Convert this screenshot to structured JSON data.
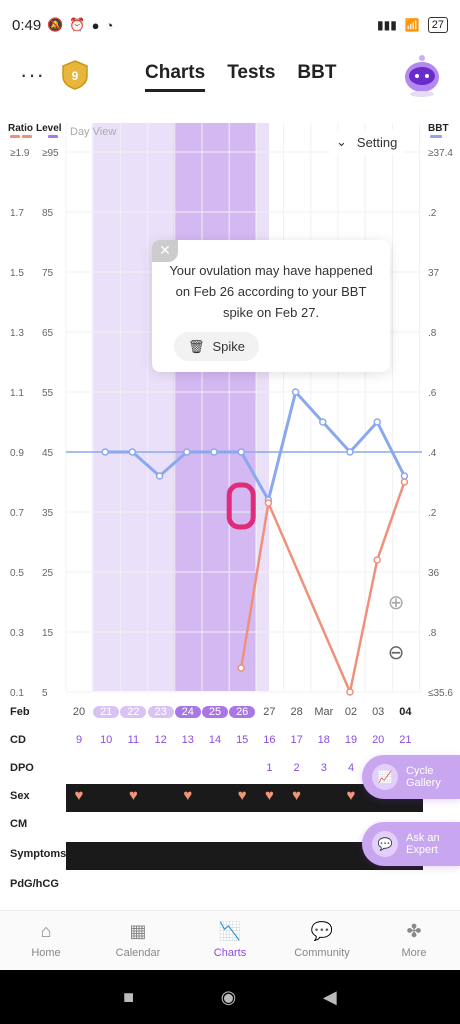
{
  "status": {
    "time": "0:49",
    "battery": "27"
  },
  "header": {
    "tabs": [
      "Charts",
      "Tests",
      "BBT"
    ],
    "active_tab": "Charts",
    "badge_number": "9"
  },
  "chart": {
    "view_label": "Day View",
    "setting_label": "Setting",
    "left_axis_titles": [
      "Ratio",
      "Level"
    ],
    "right_axis_title": "BBT",
    "ratio_ticks": [
      "≥1.9",
      "1.7",
      "1.5",
      "1.3",
      "1.1",
      "0.9",
      "0.7",
      "0.5",
      "0.3",
      "0.1"
    ],
    "level_ticks": [
      "≥95",
      "85",
      "75",
      "65",
      "55",
      "45",
      "35",
      "25",
      "15",
      "5"
    ],
    "bbt_ticks": [
      "≥37.4",
      ".2",
      "37",
      ".8",
      ".6",
      ".4",
      ".2",
      "36",
      ".8",
      "≤35.6"
    ],
    "popup": {
      "message": "Your ovulation may have happened on Feb 26 according to your BBT spike on Feb 27.",
      "spike_label": "Spike",
      "close_symbol": "✕"
    }
  },
  "chart_data": {
    "type": "line",
    "x": [
      "20",
      "21",
      "22",
      "23",
      "24",
      "25",
      "26",
      "27",
      "28",
      "Mar",
      "02",
      "03",
      "04"
    ],
    "series": [
      {
        "name": "BBT",
        "values": [
          null,
          45,
          45,
          41,
          45,
          45,
          45,
          37,
          55,
          50,
          45,
          50,
          41
        ],
        "color": "#8aa8ef"
      },
      {
        "name": "Ratio",
        "values": [
          null,
          null,
          null,
          null,
          null,
          null,
          0.18,
          0.73,
          null,
          null,
          0.1,
          0.54,
          0.8
        ],
        "color": "#f0907a"
      }
    ],
    "baseline_value": 45,
    "ylim_level": [
      5,
      95
    ]
  },
  "rows": {
    "feb_label": "Feb",
    "dates": [
      "20",
      "21",
      "22",
      "23",
      "24",
      "25",
      "26",
      "27",
      "28",
      "Mar",
      "02",
      "03",
      "04"
    ],
    "cd_label": "CD",
    "cd": [
      "9",
      "10",
      "11",
      "12",
      "13",
      "14",
      "15",
      "16",
      "17",
      "18",
      "19",
      "20",
      "21"
    ],
    "dpo_label": "DPO",
    "dpo": [
      "1",
      "2",
      "3",
      "4"
    ],
    "sex_label": "Sex",
    "cm_label": "CM",
    "symptoms_label": "Symptoms",
    "pdg_label": "PdG/hCG"
  },
  "floating": {
    "cycle_gallery": [
      "Cycle",
      "Gallery"
    ],
    "ask_expert": [
      "Ask an",
      "Expert"
    ]
  },
  "bottom_nav": {
    "items": [
      "Home",
      "Calendar",
      "Charts",
      "Community",
      "More"
    ],
    "active": "Charts"
  },
  "colors": {
    "accent": "#8a4ee0",
    "light_purple_band": "#ebe0f9",
    "mid_purple_band": "#d4b8f2",
    "bbt_line": "#8aa8ef",
    "ratio_line": "#f0907a",
    "highlight_ring": "#e02a7a"
  }
}
